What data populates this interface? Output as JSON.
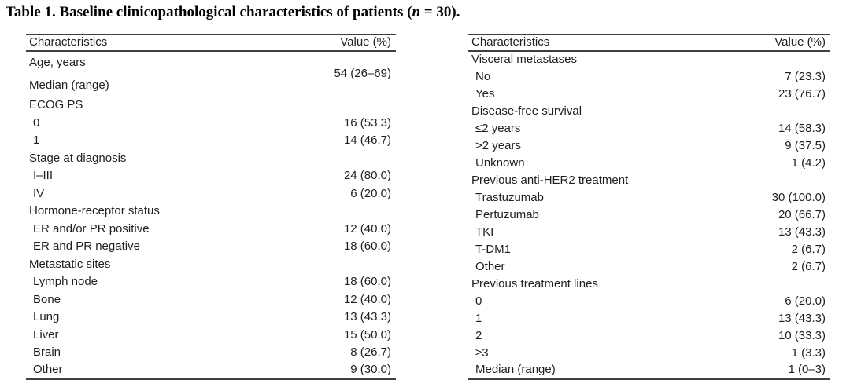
{
  "title": {
    "prefix": "Table 1. Baseline clinicopathological characteristics of patients (",
    "n": "n",
    "suffix": " = 30)."
  },
  "colors": {
    "background": "#ffffff",
    "text": "#1f1f1f",
    "rule": "#3f3f3f"
  },
  "tables": [
    {
      "name": "left",
      "headers": [
        "Characteristics",
        "Value (%)"
      ],
      "rows": [
        {
          "label": "Age, years",
          "value": "54 (26–69)",
          "rowspan": 2,
          "indent": 0,
          "tall": true
        },
        {
          "label": "Median (range)",
          "value": null,
          "indent": 0,
          "tall": true
        },
        {
          "label": "ECOG PS",
          "value": "",
          "indent": 0
        },
        {
          "label": "0",
          "value": "16 (53.3)",
          "indent": 1
        },
        {
          "label": "1",
          "value": "14 (46.7)",
          "indent": 1
        },
        {
          "label": "Stage at diagnosis",
          "value": "",
          "indent": 0
        },
        {
          "label": "I–III",
          "value": "24 (80.0)",
          "indent": 1
        },
        {
          "label": "IV",
          "value": "6 (20.0)",
          "indent": 1
        },
        {
          "label": "Hormone-receptor status",
          "value": "",
          "indent": 0
        },
        {
          "label": "ER and/or PR positive",
          "value": "12 (40.0)",
          "indent": 1
        },
        {
          "label": "ER and PR negative",
          "value": "18 (60.0)",
          "indent": 1
        },
        {
          "label": "Metastatic sites",
          "value": "",
          "indent": 0
        },
        {
          "label": "Lymph node",
          "value": "18 (60.0)",
          "indent": 1
        },
        {
          "label": "Bone",
          "value": "12 (40.0)",
          "indent": 1
        },
        {
          "label": "Lung",
          "value": "13 (43.3)",
          "indent": 1
        },
        {
          "label": "Liver",
          "value": "15 (50.0)",
          "indent": 1
        },
        {
          "label": "Brain",
          "value": "8 (26.7)",
          "indent": 1
        },
        {
          "label": "Other",
          "value": "9 (30.0)",
          "indent": 1
        }
      ]
    },
    {
      "name": "right",
      "headers": [
        "Characteristics",
        "Value (%)"
      ],
      "rows": [
        {
          "label": "Visceral metastases",
          "value": "",
          "indent": 0
        },
        {
          "label": "No",
          "value": "7 (23.3)",
          "indent": 1
        },
        {
          "label": "Yes",
          "value": "23 (76.7)",
          "indent": 1
        },
        {
          "label": "Disease-free survival",
          "value": "",
          "indent": 0
        },
        {
          "label": "≤2 years",
          "value": "14 (58.3)",
          "indent": 1
        },
        {
          "label": ">2 years",
          "value": "9 (37.5)",
          "indent": 1
        },
        {
          "label": "Unknown",
          "value": "1 (4.2)",
          "indent": 1
        },
        {
          "label": "Previous anti-HER2 treatment",
          "value": "",
          "indent": 0
        },
        {
          "label": "Trastuzumab",
          "value": "30 (100.0)",
          "indent": 1
        },
        {
          "label": "Pertuzumab",
          "value": "20 (66.7)",
          "indent": 1
        },
        {
          "label": "TKI",
          "value": "13 (43.3)",
          "indent": 1
        },
        {
          "label": "T-DM1",
          "value": "2 (6.7)",
          "indent": 1
        },
        {
          "label": "Other",
          "value": "2 (6.7)",
          "indent": 1
        },
        {
          "label": "Previous treatment lines",
          "value": "",
          "indent": 0
        },
        {
          "label": "0",
          "value": "6 (20.0)",
          "indent": 1
        },
        {
          "label": "1",
          "value": "13 (43.3)",
          "indent": 1
        },
        {
          "label": "2",
          "value": "10 (33.3)",
          "indent": 1
        },
        {
          "label": "≥3",
          "value": "1 (3.3)",
          "indent": 1
        },
        {
          "label": "Median (range)",
          "value": "1 (0–3)",
          "indent": 1
        }
      ]
    }
  ]
}
